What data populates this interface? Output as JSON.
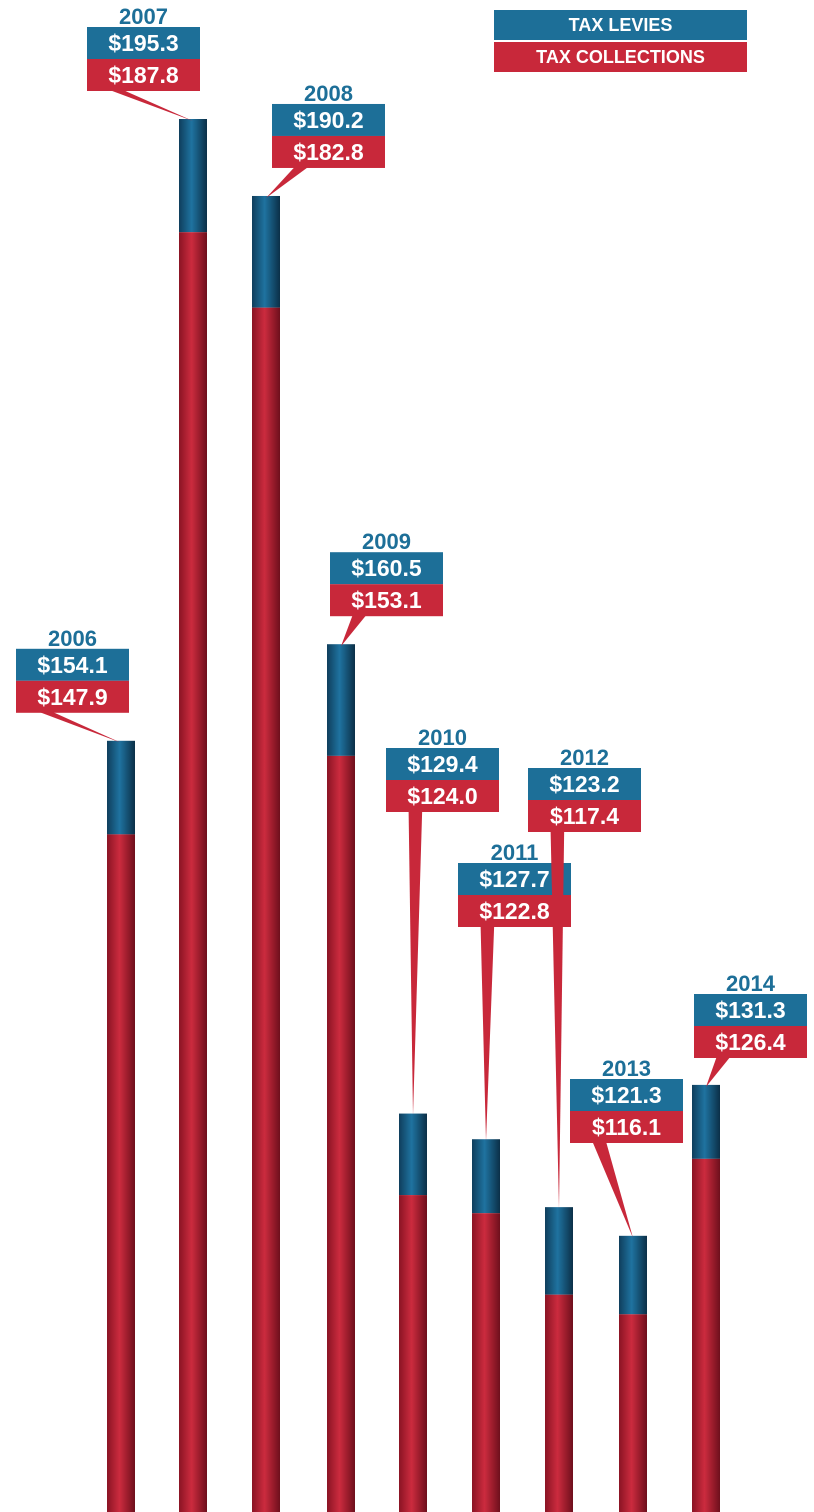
{
  "legend": {
    "levies_label": "TAX LEVIES",
    "collections_label": "TAX COLLECTIONS"
  },
  "colors": {
    "levies": "#1d6f98",
    "collections": "#c8283a",
    "background": "#ffffff"
  },
  "chart_data": {
    "type": "bar",
    "categories": [
      "2006",
      "2007",
      "2008",
      "2009",
      "2010",
      "2011",
      "2012",
      "2013",
      "2014"
    ],
    "series": [
      {
        "name": "TAX LEVIES",
        "values": [
          154.1,
          195.3,
          190.2,
          160.5,
          129.4,
          127.7,
          123.2,
          121.3,
          131.3
        ]
      },
      {
        "name": "TAX COLLECTIONS",
        "values": [
          147.9,
          187.8,
          182.8,
          153.1,
          124.0,
          122.8,
          117.4,
          116.1,
          126.4
        ]
      }
    ],
    "value_labels": {
      "levies": [
        "$154.1",
        "$195.3",
        "$190.2",
        "$160.5",
        "$129.4",
        "$127.7",
        "$123.2",
        "$121.3",
        "$131.3"
      ],
      "collections": [
        "$147.9",
        "$187.8",
        "$182.8",
        "$153.1",
        "$124.0",
        "$122.8",
        "$117.4",
        "$116.1",
        "$126.4"
      ]
    },
    "title": "",
    "xlabel": "",
    "ylabel": "",
    "ylim": [
      103,
      195.3
    ],
    "grid": false,
    "legend_position": "top-right"
  }
}
